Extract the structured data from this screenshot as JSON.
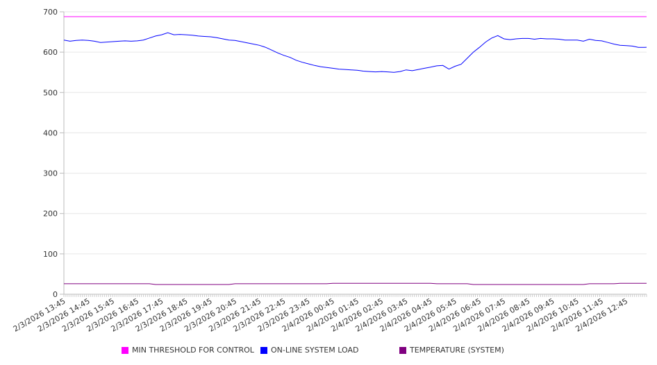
{
  "chart_data": {
    "type": "line",
    "title": "",
    "xlabel": "",
    "ylabel": "",
    "ylim": [
      0,
      700
    ],
    "yticks": [
      0,
      100,
      200,
      300,
      400,
      500,
      600,
      700
    ],
    "grid": true,
    "legend_position": "bottom",
    "x_interval_minutes": 15,
    "x_tick_labels": [
      "2/3/2026 13:45",
      "2/3/2026 14:45",
      "2/3/2026 15:45",
      "2/3/2026 16:45",
      "2/3/2026 17:45",
      "2/3/2026 18:45",
      "2/3/2026 19:45",
      "2/3/2026 20:45",
      "2/3/2026 21:45",
      "2/3/2026 22:45",
      "2/3/2026 23:45",
      "2/4/2026 00:45",
      "2/4/2026 01:45",
      "2/4/2026 02:45",
      "2/4/2026 03:45",
      "2/4/2026 04:45",
      "2/4/2026 05:45",
      "2/4/2026 06:45",
      "2/4/2026 07:45",
      "2/4/2026 08:45",
      "2/4/2026 09:45",
      "2/4/2026 10:45",
      "2/4/2026 11:45",
      "2/4/2026 12:45"
    ],
    "series": [
      {
        "name": "MIN THRESHOLD FOR CONTROL",
        "color": "#ff00ff",
        "constant": 688
      },
      {
        "name": "ON-LINE SYSTEM LOAD",
        "color": "#0000ff",
        "values": [
          630,
          627,
          629,
          630,
          629,
          627,
          624,
          625,
          626,
          627,
          628,
          627,
          628,
          630,
          635,
          640,
          643,
          648,
          643,
          644,
          643,
          642,
          640,
          639,
          638,
          636,
          633,
          630,
          629,
          626,
          623,
          620,
          617,
          612,
          605,
          598,
          592,
          587,
          580,
          575,
          571,
          567,
          564,
          562,
          560,
          558,
          557,
          556,
          555,
          553,
          552,
          551,
          552,
          551,
          550,
          552,
          556,
          554,
          557,
          560,
          563,
          566,
          567,
          558,
          565,
          570,
          585,
          600,
          612,
          625,
          635,
          641,
          633,
          631,
          633,
          634,
          634,
          632,
          634,
          633,
          633,
          632,
          630,
          630,
          630,
          627,
          632,
          629,
          628,
          624,
          620,
          617,
          616,
          615,
          612,
          612
        ]
      },
      {
        "name": "TEMPERATURE (SYSTEM)",
        "color": "#800080",
        "values": [
          26,
          26,
          26,
          26,
          26,
          26,
          26,
          26,
          26,
          26,
          26,
          26,
          26,
          26,
          26,
          24,
          24,
          24,
          24,
          24,
          24,
          24,
          24,
          24,
          24,
          24,
          24,
          24,
          26,
          26,
          26,
          26,
          26,
          26,
          26,
          26,
          26,
          26,
          26,
          26,
          26,
          26,
          26,
          26,
          27,
          27,
          27,
          27,
          27,
          27,
          27,
          27,
          27,
          27,
          27,
          27,
          27,
          27,
          27,
          27,
          27,
          26,
          26,
          26,
          26,
          26,
          26,
          24,
          24,
          24,
          24,
          24,
          24,
          24,
          24,
          24,
          24,
          24,
          24,
          24,
          24,
          24,
          24,
          24,
          24,
          24,
          26,
          26,
          26,
          26,
          26,
          27,
          27,
          27,
          27,
          27
        ]
      }
    ]
  }
}
